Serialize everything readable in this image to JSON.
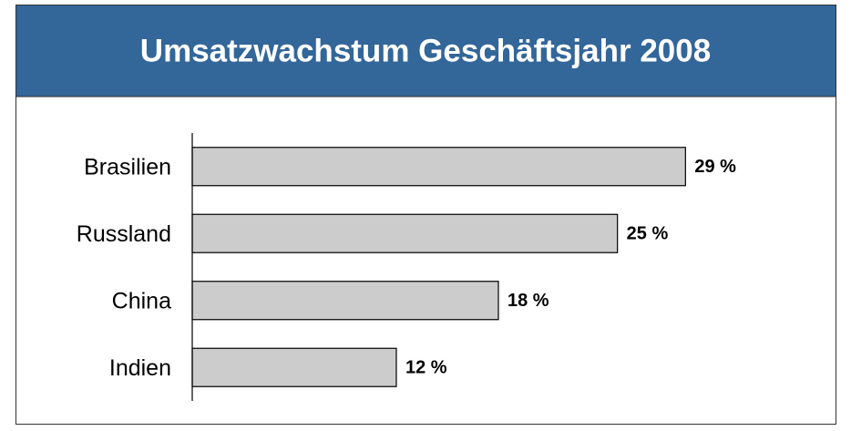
{
  "chart_data": {
    "type": "bar",
    "orientation": "horizontal",
    "title": "Umsatzwachstum Geschäftsjahr 2008",
    "categories": [
      "Brasilien",
      "Russland",
      "China",
      "Indien"
    ],
    "values": [
      29,
      25,
      18,
      12
    ],
    "value_labels": [
      "29 %",
      "25 %",
      "18 %",
      "12 %"
    ],
    "color": "#cccccc",
    "xlim": [
      0,
      30
    ]
  }
}
